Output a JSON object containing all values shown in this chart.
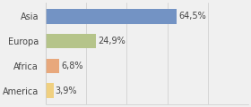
{
  "categories": [
    "Asia",
    "Europa",
    "Africa",
    "America"
  ],
  "values": [
    64.5,
    24.9,
    6.8,
    3.9
  ],
  "labels": [
    "64,5%",
    "24,9%",
    "6,8%",
    "3,9%"
  ],
  "bar_colors": [
    "#7393c4",
    "#b5c48a",
    "#e8a87c",
    "#f0d080"
  ],
  "background_color": "#f0f0f0",
  "xlim": [
    0,
    100
  ],
  "bar_height": 0.6,
  "figsize": [
    2.8,
    1.2
  ],
  "dpi": 100,
  "label_fontsize": 7,
  "tick_fontsize": 7
}
